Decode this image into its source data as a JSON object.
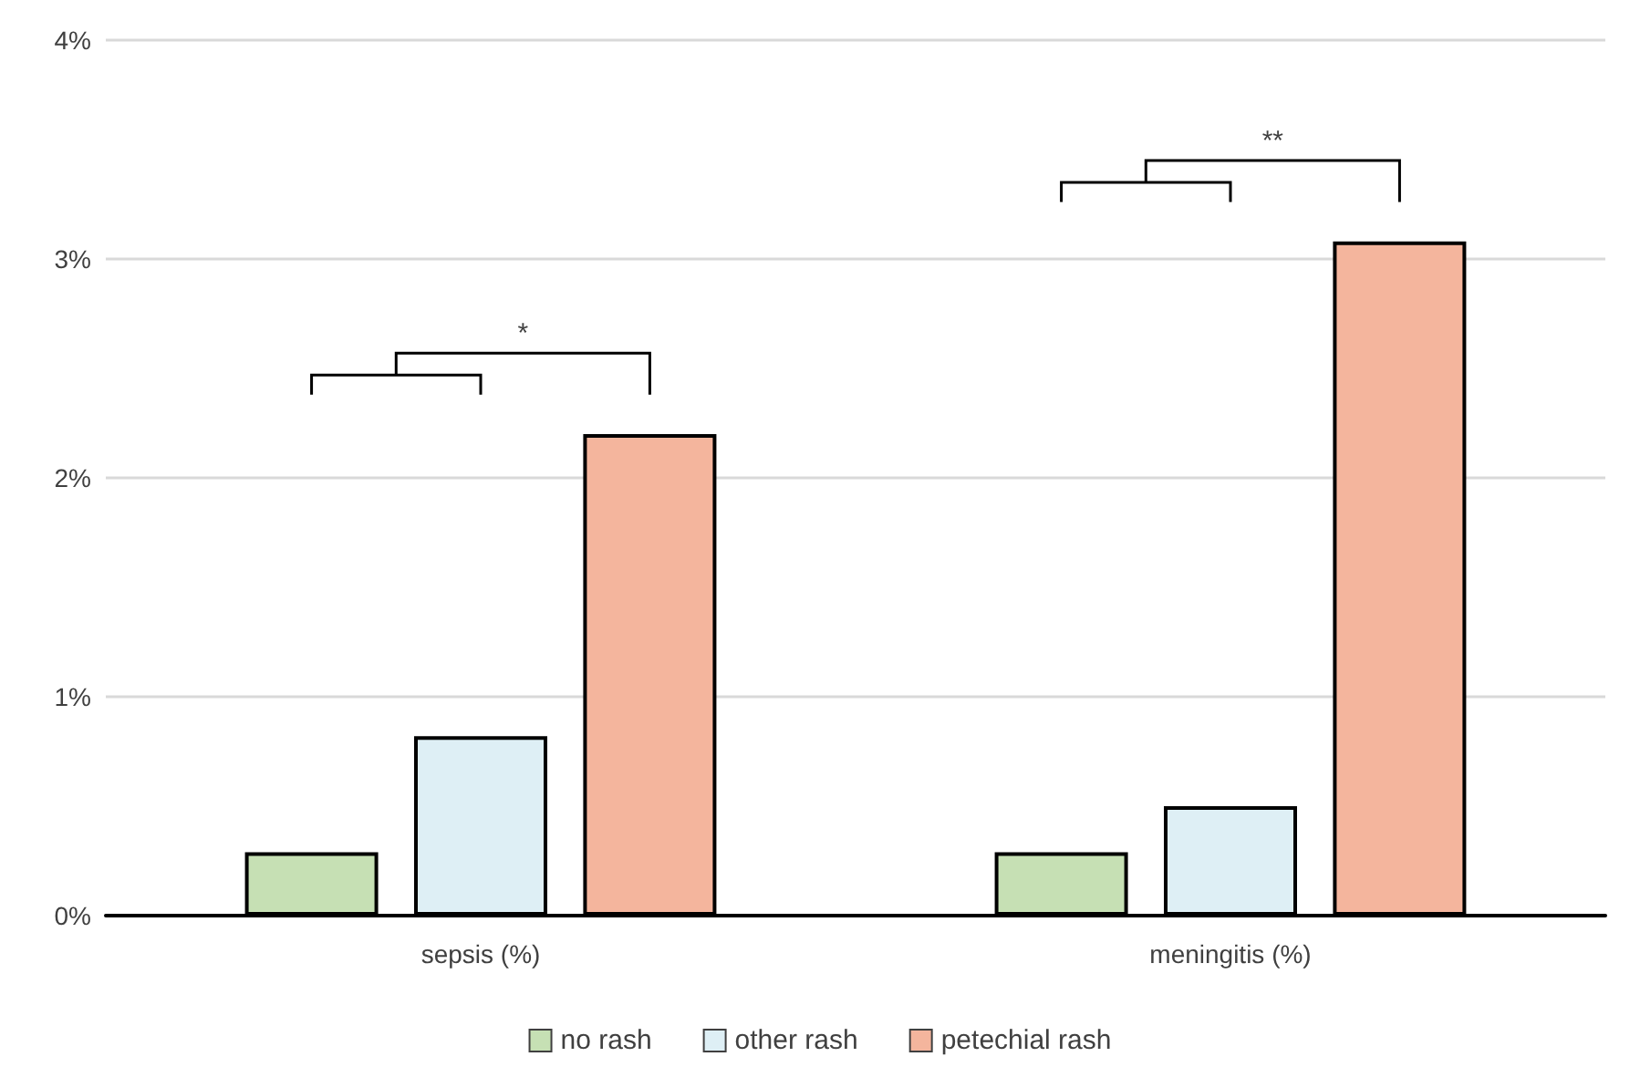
{
  "chart_data": {
    "type": "bar",
    "categories": [
      "sepsis (%)",
      "meningitis (%)"
    ],
    "series": [
      {
        "name": "no rash",
        "color": "#c6e0b4",
        "values": [
          0.29,
          0.29
        ]
      },
      {
        "name": "other rash",
        "color": "#deeff5",
        "values": [
          0.82,
          0.5
        ]
      },
      {
        "name": "petechial rash",
        "color": "#f4b59d",
        "values": [
          2.2,
          3.08
        ]
      }
    ],
    "ylim": [
      0,
      4
    ],
    "yticks": [
      {
        "value": 0,
        "label": "0%"
      },
      {
        "value": 1,
        "label": "1%"
      },
      {
        "value": 2,
        "label": "2%"
      },
      {
        "value": 3,
        "label": "3%"
      },
      {
        "value": 4,
        "label": "4%"
      }
    ],
    "grid": "y",
    "legend": "bottom",
    "annotations": [
      "*",
      "**"
    ]
  }
}
